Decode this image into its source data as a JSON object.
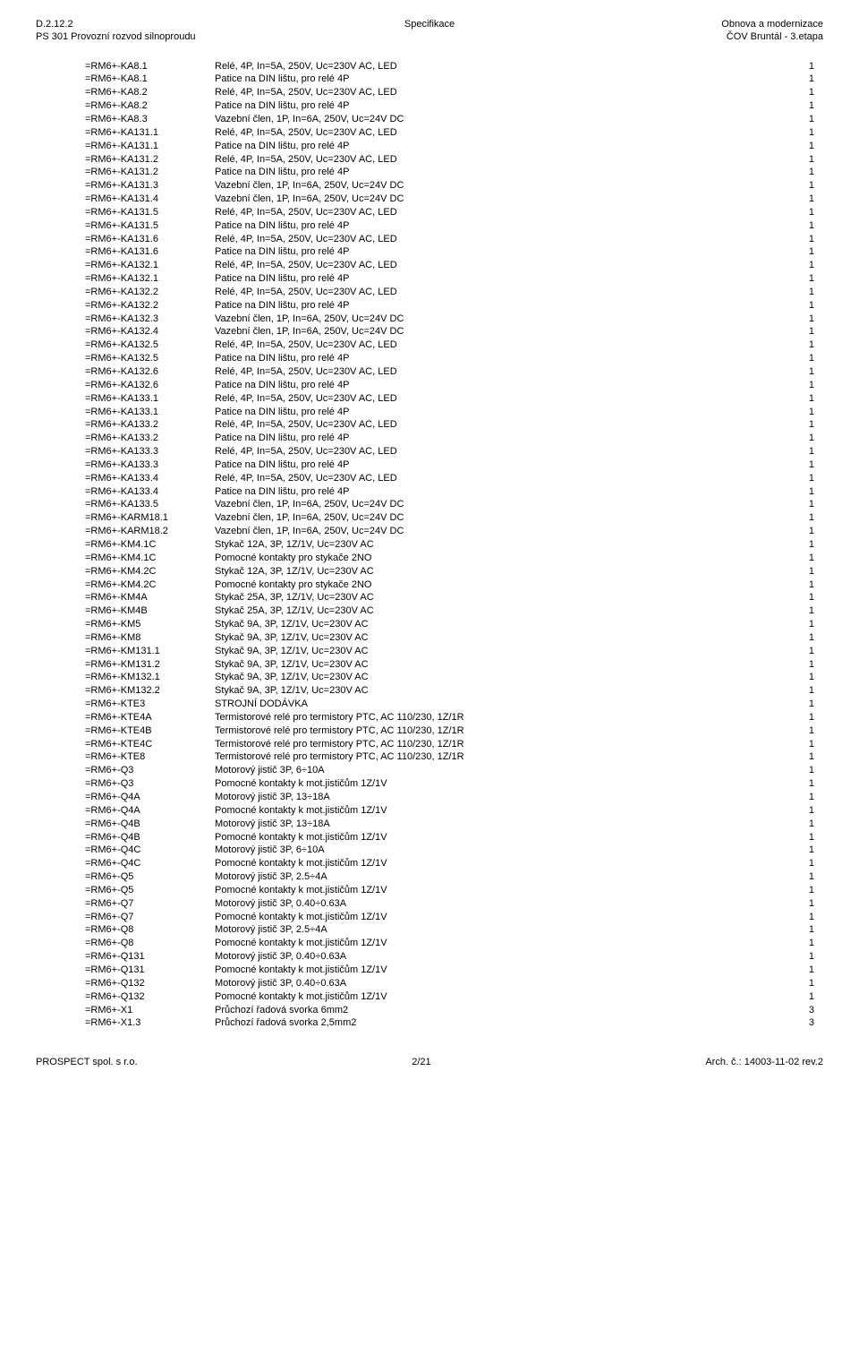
{
  "header": {
    "left_line1": "D.2.12.2",
    "left_line2": "PS 301 Provozní rozvod silnoproudu",
    "center": "Specifikace",
    "right_line1": "Obnova a modernizace",
    "right_line2": "ČOV Bruntál - 3.etapa"
  },
  "rows": [
    {
      "code": "=RM6+-KA8.1",
      "desc": "Relé, 4P, In=5A, 250V, Uc=230V AC, LED",
      "qty": "1"
    },
    {
      "code": "=RM6+-KA8.1",
      "desc": "Patice na DIN lištu, pro relé 4P",
      "qty": "1"
    },
    {
      "code": "=RM6+-KA8.2",
      "desc": "Relé, 4P, In=5A, 250V, Uc=230V AC, LED",
      "qty": "1"
    },
    {
      "code": "=RM6+-KA8.2",
      "desc": "Patice na DIN lištu, pro relé 4P",
      "qty": "1"
    },
    {
      "code": "=RM6+-KA8.3",
      "desc": "Vazební člen, 1P, In=6A, 250V, Uc=24V DC",
      "qty": "1"
    },
    {
      "code": "=RM6+-KA131.1",
      "desc": "Relé, 4P, In=5A, 250V, Uc=230V AC, LED",
      "qty": "1"
    },
    {
      "code": "=RM6+-KA131.1",
      "desc": "Patice na DIN lištu, pro relé 4P",
      "qty": "1"
    },
    {
      "code": "=RM6+-KA131.2",
      "desc": "Relé, 4P, In=5A, 250V, Uc=230V AC, LED",
      "qty": "1"
    },
    {
      "code": "=RM6+-KA131.2",
      "desc": "Patice na DIN lištu, pro relé 4P",
      "qty": "1"
    },
    {
      "code": "=RM6+-KA131.3",
      "desc": "Vazební člen, 1P, In=6A, 250V, Uc=24V DC",
      "qty": "1"
    },
    {
      "code": "=RM6+-KA131.4",
      "desc": "Vazební člen, 1P, In=6A, 250V, Uc=24V DC",
      "qty": "1"
    },
    {
      "code": "=RM6+-KA131.5",
      "desc": "Relé, 4P, In=5A, 250V, Uc=230V AC, LED",
      "qty": "1"
    },
    {
      "code": "=RM6+-KA131.5",
      "desc": "Patice na DIN lištu, pro relé 4P",
      "qty": "1"
    },
    {
      "code": "=RM6+-KA131.6",
      "desc": "Relé, 4P, In=5A, 250V, Uc=230V AC, LED",
      "qty": "1"
    },
    {
      "code": "=RM6+-KA131.6",
      "desc": "Patice na DIN lištu, pro relé 4P",
      "qty": "1"
    },
    {
      "code": "=RM6+-KA132.1",
      "desc": "Relé, 4P, In=5A, 250V, Uc=230V AC, LED",
      "qty": "1"
    },
    {
      "code": "=RM6+-KA132.1",
      "desc": "Patice na DIN lištu, pro relé 4P",
      "qty": "1"
    },
    {
      "code": "=RM6+-KA132.2",
      "desc": "Relé, 4P, In=5A, 250V, Uc=230V AC, LED",
      "qty": "1"
    },
    {
      "code": "=RM6+-KA132.2",
      "desc": "Patice na DIN lištu, pro relé 4P",
      "qty": "1"
    },
    {
      "code": "=RM6+-KA132.3",
      "desc": "Vazební člen, 1P, In=6A, 250V, Uc=24V DC",
      "qty": "1"
    },
    {
      "code": "=RM6+-KA132.4",
      "desc": "Vazební člen, 1P, In=6A, 250V, Uc=24V DC",
      "qty": "1"
    },
    {
      "code": "=RM6+-KA132.5",
      "desc": "Relé, 4P, In=5A, 250V, Uc=230V AC, LED",
      "qty": "1"
    },
    {
      "code": "=RM6+-KA132.5",
      "desc": "Patice na DIN lištu, pro relé 4P",
      "qty": "1"
    },
    {
      "code": "=RM6+-KA132.6",
      "desc": "Relé, 4P, In=5A, 250V, Uc=230V AC, LED",
      "qty": "1"
    },
    {
      "code": "=RM6+-KA132.6",
      "desc": "Patice na DIN lištu, pro relé 4P",
      "qty": "1"
    },
    {
      "code": "=RM6+-KA133.1",
      "desc": "Relé, 4P, In=5A, 250V, Uc=230V AC, LED",
      "qty": "1"
    },
    {
      "code": "=RM6+-KA133.1",
      "desc": "Patice na DIN lištu, pro relé 4P",
      "qty": "1"
    },
    {
      "code": "=RM6+-KA133.2",
      "desc": "Relé, 4P, In=5A, 250V, Uc=230V AC, LED",
      "qty": "1"
    },
    {
      "code": "=RM6+-KA133.2",
      "desc": "Patice na DIN lištu, pro relé 4P",
      "qty": "1"
    },
    {
      "code": "=RM6+-KA133.3",
      "desc": "Relé, 4P, In=5A, 250V, Uc=230V AC, LED",
      "qty": "1"
    },
    {
      "code": "=RM6+-KA133.3",
      "desc": "Patice na DIN lištu, pro relé 4P",
      "qty": "1"
    },
    {
      "code": "=RM6+-KA133.4",
      "desc": "Relé, 4P, In=5A, 250V, Uc=230V AC, LED",
      "qty": "1"
    },
    {
      "code": "=RM6+-KA133.4",
      "desc": "Patice na DIN lištu, pro relé 4P",
      "qty": "1"
    },
    {
      "code": "=RM6+-KA133.5",
      "desc": "Vazební člen, 1P, In=6A, 250V, Uc=24V DC",
      "qty": "1"
    },
    {
      "code": "=RM6+-KARM18.1",
      "desc": "Vazební člen, 1P, In=6A, 250V, Uc=24V DC",
      "qty": "1"
    },
    {
      "code": "=RM6+-KARM18.2",
      "desc": "Vazební člen, 1P, In=6A, 250V, Uc=24V DC",
      "qty": "1"
    },
    {
      "code": "=RM6+-KM4.1C",
      "desc": "Stykač 12A, 3P, 1Z/1V, Uc=230V AC",
      "qty": "1"
    },
    {
      "code": "=RM6+-KM4.1C",
      "desc": "Pomocné kontakty pro stykače 2NO",
      "qty": "1"
    },
    {
      "code": "=RM6+-KM4.2C",
      "desc": "Stykač 12A, 3P, 1Z/1V, Uc=230V AC",
      "qty": "1"
    },
    {
      "code": "=RM6+-KM4.2C",
      "desc": "Pomocné kontakty pro stykače 2NO",
      "qty": "1"
    },
    {
      "code": "=RM6+-KM4A",
      "desc": "Stykač 25A, 3P, 1Z/1V, Uc=230V AC",
      "qty": "1"
    },
    {
      "code": "=RM6+-KM4B",
      "desc": "Stykač 25A, 3P, 1Z/1V, Uc=230V AC",
      "qty": "1"
    },
    {
      "code": "=RM6+-KM5",
      "desc": "Stykač 9A, 3P, 1Z/1V, Uc=230V AC",
      "qty": "1"
    },
    {
      "code": "=RM6+-KM8",
      "desc": "Stykač 9A, 3P, 1Z/1V, Uc=230V AC",
      "qty": "1"
    },
    {
      "code": "=RM6+-KM131.1",
      "desc": "Stykač 9A, 3P, 1Z/1V, Uc=230V AC",
      "qty": "1"
    },
    {
      "code": "=RM6+-KM131.2",
      "desc": "Stykač 9A, 3P, 1Z/1V, Uc=230V AC",
      "qty": "1"
    },
    {
      "code": "=RM6+-KM132.1",
      "desc": "Stykač 9A, 3P, 1Z/1V, Uc=230V AC",
      "qty": "1"
    },
    {
      "code": "=RM6+-KM132.2",
      "desc": "Stykač 9A, 3P, 1Z/1V, Uc=230V AC",
      "qty": "1"
    },
    {
      "code": "=RM6+-KTE3",
      "desc": "STROJNÍ DODÁVKA",
      "qty": "1"
    },
    {
      "code": "=RM6+-KTE4A",
      "desc": "Termistorové relé pro termistory PTC, AC 110/230, 1Z/1R",
      "qty": "1"
    },
    {
      "code": "=RM6+-KTE4B",
      "desc": "Termistorové relé pro termistory PTC, AC 110/230, 1Z/1R",
      "qty": "1"
    },
    {
      "code": "=RM6+-KTE4C",
      "desc": "Termistorové relé pro termistory PTC, AC 110/230, 1Z/1R",
      "qty": "1"
    },
    {
      "code": "=RM6+-KTE8",
      "desc": "Termistorové relé pro termistory PTC, AC 110/230, 1Z/1R",
      "qty": "1"
    },
    {
      "code": "=RM6+-Q3",
      "desc": "Motorový jistič 3P, 6÷10A",
      "qty": "1"
    },
    {
      "code": "=RM6+-Q3",
      "desc": "Pomocné kontakty k mot.jističům 1Z/1V",
      "qty": "1"
    },
    {
      "code": "=RM6+-Q4A",
      "desc": "Motorový jistič 3P, 13÷18A",
      "qty": "1"
    },
    {
      "code": "=RM6+-Q4A",
      "desc": "Pomocné kontakty k mot.jističům 1Z/1V",
      "qty": "1"
    },
    {
      "code": "=RM6+-Q4B",
      "desc": "Motorový jistič 3P, 13÷18A",
      "qty": "1"
    },
    {
      "code": "=RM6+-Q4B",
      "desc": "Pomocné kontakty k mot.jističům 1Z/1V",
      "qty": "1"
    },
    {
      "code": "=RM6+-Q4C",
      "desc": "Motorový jistič 3P, 6÷10A",
      "qty": "1"
    },
    {
      "code": "=RM6+-Q4C",
      "desc": "Pomocné kontakty k mot.jističům 1Z/1V",
      "qty": "1"
    },
    {
      "code": "=RM6+-Q5",
      "desc": "Motorový jistič 3P, 2.5÷4A",
      "qty": "1"
    },
    {
      "code": "=RM6+-Q5",
      "desc": "Pomocné kontakty k mot.jističům 1Z/1V",
      "qty": "1"
    },
    {
      "code": "=RM6+-Q7",
      "desc": "Motorový jistič 3P, 0.40÷0.63A",
      "qty": "1"
    },
    {
      "code": "=RM6+-Q7",
      "desc": "Pomocné kontakty k mot.jističům 1Z/1V",
      "qty": "1"
    },
    {
      "code": "=RM6+-Q8",
      "desc": "Motorový jistič 3P, 2.5÷4A",
      "qty": "1"
    },
    {
      "code": "=RM6+-Q8",
      "desc": "Pomocné kontakty k mot.jističům 1Z/1V",
      "qty": "1"
    },
    {
      "code": "=RM6+-Q131",
      "desc": "Motorový jistič 3P, 0.40÷0.63A",
      "qty": "1"
    },
    {
      "code": "=RM6+-Q131",
      "desc": "Pomocné kontakty k mot.jističům 1Z/1V",
      "qty": "1"
    },
    {
      "code": "=RM6+-Q132",
      "desc": "Motorový jistič 3P, 0.40÷0.63A",
      "qty": "1"
    },
    {
      "code": "=RM6+-Q132",
      "desc": "Pomocné kontakty k mot.jističům 1Z/1V",
      "qty": "1"
    },
    {
      "code": "=RM6+-X1",
      "desc": "Průchozí řadová svorka 6mm2",
      "qty": "3"
    },
    {
      "code": "=RM6+-X1.3",
      "desc": "Průchozí řadová svorka 2,5mm2",
      "qty": "3"
    }
  ],
  "footer": {
    "left": "PROSPECT spol. s r.o.",
    "center": "2/21",
    "right": "Arch. č.: 14003-11-02 rev.2"
  }
}
